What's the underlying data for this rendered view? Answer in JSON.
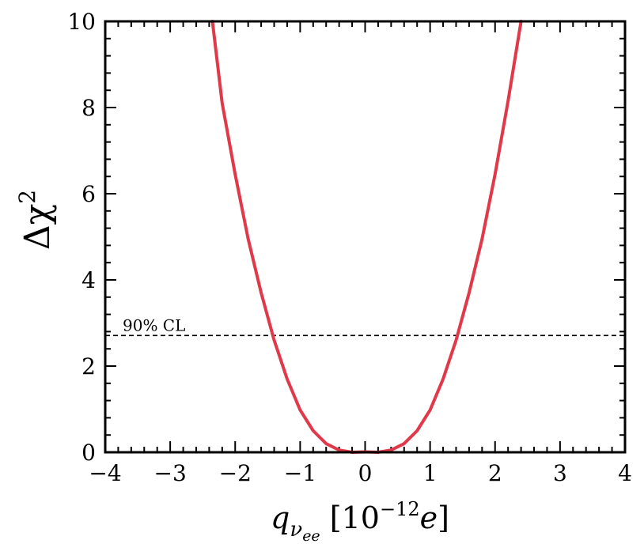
{
  "chart_data": {
    "type": "line",
    "title": "",
    "xlabel": {
      "base": "q",
      "sub": "ν",
      "subsub": "ee",
      "open": " [10",
      "exp": "−12",
      "unit": "e",
      "close": "]"
    },
    "ylabel": {
      "base": "Δχ",
      "exp": "2"
    },
    "xlim": [
      -4,
      4
    ],
    "ylim": [
      0,
      10
    ],
    "xticks": [
      -4,
      -3,
      -2,
      -1,
      0,
      1,
      2,
      3,
      4
    ],
    "xtick_labels": [
      "−4",
      "−3",
      "−2",
      "−1",
      "0",
      "1",
      "2",
      "3",
      "4"
    ],
    "yticks": [
      0,
      2,
      4,
      6,
      8,
      10
    ],
    "ytick_labels": [
      "0",
      "2",
      "4",
      "6",
      "8",
      "10"
    ],
    "grid": false,
    "series": [
      {
        "color": "#e0394a",
        "x": [
          -2.35,
          -2.2,
          -2.0,
          -1.8,
          -1.6,
          -1.4,
          -1.2,
          -1.0,
          -0.8,
          -0.6,
          -0.4,
          -0.2,
          0.0,
          0.2,
          0.4,
          0.6,
          0.8,
          1.0,
          1.2,
          1.4,
          1.6,
          1.8,
          2.0,
          2.2,
          2.4
        ],
        "y": [
          10.0,
          8.1,
          6.45,
          4.95,
          3.7,
          2.6,
          1.7,
          0.98,
          0.5,
          0.2,
          0.05,
          0.0,
          0.01,
          0.0,
          0.05,
          0.2,
          0.5,
          0.98,
          1.7,
          2.6,
          3.7,
          4.95,
          6.45,
          8.15,
          10.0
        ]
      }
    ],
    "reference_line": {
      "y": 2.71,
      "style": "dashed",
      "color": "#000000",
      "label": "90% CL"
    }
  }
}
